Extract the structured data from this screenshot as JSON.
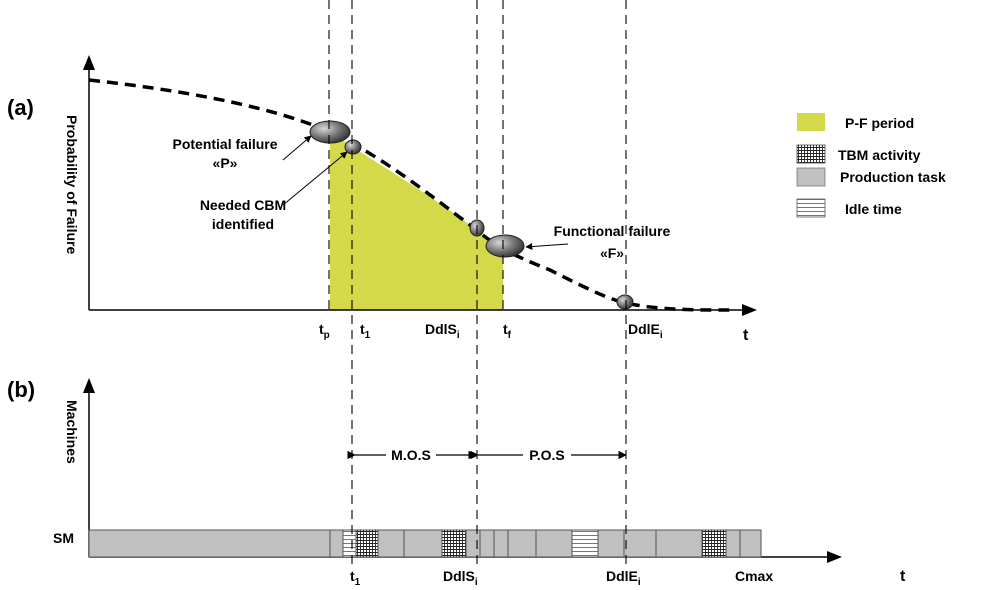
{
  "panel_a": {
    "tag": "(a)",
    "y_axis_label": "Probability of Failure",
    "x_axis_label": "t",
    "ticks": {
      "tp_main": "t",
      "tp_sub": "p",
      "t1_main": "t",
      "t1_sub": "1",
      "ddls_main": "DdlS",
      "ddls_sub": "i",
      "tf_main": "t",
      "tf_sub": "f",
      "ddle_main": "DdlE",
      "ddle_sub": "i"
    },
    "annotations": {
      "potential_failure_line1": "Potential failure",
      "potential_failure_line2": "«P»",
      "needed_cbm_line1": "Needed CBM",
      "needed_cbm_line2": "identified",
      "functional_failure_line1": "Functional failure",
      "functional_failure_line2": "«F»"
    }
  },
  "panel_b": {
    "tag": "(b)",
    "y_axis_label": "Machines",
    "x_axis_label": "t",
    "machine_label": "SM",
    "ticks": {
      "t1_main": "t",
      "t1_sub": "1",
      "ddls_main": "DdlS",
      "ddls_sub": "i",
      "ddle_main": "DdlE",
      "ddle_sub": "i",
      "cmax": "Cmax"
    },
    "mos_label": "M.O.S",
    "pos_label": "P.O.S"
  },
  "legend": [
    {
      "label": "P-F period",
      "swatch": "pf"
    },
    {
      "label": "TBM activity",
      "swatch": "tbm"
    },
    {
      "label": "Production task",
      "swatch": "prod"
    },
    {
      "label": "Idle time",
      "swatch": "idle"
    }
  ],
  "colors": {
    "pf_period": "#d4d94a",
    "production": "#c0c0c0",
    "idle": "#ffffff",
    "curve": "#000000"
  }
}
